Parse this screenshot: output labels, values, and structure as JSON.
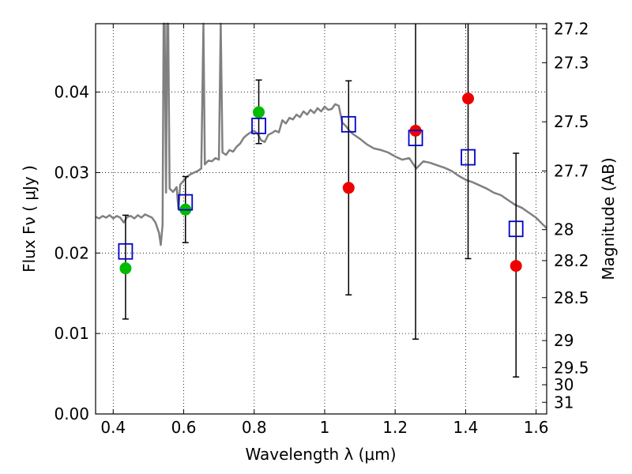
{
  "chart_data": {
    "type": "scatter",
    "xlabel": "Wavelength  λ (μm)",
    "ylabel": "Flux  Fν  ( μJy )",
    "y2label": "Magnitude (AB)",
    "xlim": [
      0.35,
      1.63
    ],
    "ylim": [
      0.0,
      0.0485
    ],
    "grid": true,
    "x_ticks": [
      {
        "value": 0.4,
        "label": "0.4"
      },
      {
        "value": 0.6,
        "label": "0.6"
      },
      {
        "value": 0.8,
        "label": "0.8"
      },
      {
        "value": 1.0,
        "label": "1"
      },
      {
        "value": 1.2,
        "label": "1.2"
      },
      {
        "value": 1.4,
        "label": "1.4"
      },
      {
        "value": 1.6,
        "label": "1.6"
      }
    ],
    "y_ticks": [
      {
        "value": 0.0,
        "label": "0.00"
      },
      {
        "value": 0.01,
        "label": "0.01"
      },
      {
        "value": 0.02,
        "label": "0.02"
      },
      {
        "value": 0.03,
        "label": "0.03"
      },
      {
        "value": 0.04,
        "label": "0.04"
      }
    ],
    "y2_ticks": [
      {
        "mag": 27.2,
        "label": "27.2"
      },
      {
        "mag": 27.3,
        "label": "27.3"
      },
      {
        "mag": 27.5,
        "label": "27.5"
      },
      {
        "mag": 27.7,
        "label": "27.7"
      },
      {
        "mag": 28.0,
        "label": "28"
      },
      {
        "mag": 28.2,
        "label": "28.2"
      },
      {
        "mag": 28.5,
        "label": "28.5"
      },
      {
        "mag": 29.0,
        "label": "29"
      },
      {
        "mag": 29.5,
        "label": "29.5"
      },
      {
        "mag": 30.0,
        "label": "30"
      },
      {
        "mag": 31.0,
        "label": "31"
      }
    ],
    "colors": {
      "model": "#808080",
      "detected": "#00bb00",
      "upper_limit": "#ee0000",
      "model_photometry": "#0000cc",
      "errorbar": "#000000"
    },
    "series": [
      {
        "role": "model_spectrum",
        "type": "line",
        "x": [
          0.35,
          0.36,
          0.37,
          0.38,
          0.39,
          0.4,
          0.41,
          0.42,
          0.43,
          0.44,
          0.45,
          0.46,
          0.47,
          0.48,
          0.49,
          0.5,
          0.51,
          0.52,
          0.53,
          0.535,
          0.54,
          0.543,
          0.546,
          0.55,
          0.553,
          0.556,
          0.56,
          0.57,
          0.58,
          0.585,
          0.59,
          0.6,
          0.61,
          0.62,
          0.63,
          0.64,
          0.65,
          0.656,
          0.66,
          0.67,
          0.68,
          0.69,
          0.7,
          0.705,
          0.71,
          0.72,
          0.73,
          0.74,
          0.75,
          0.76,
          0.77,
          0.78,
          0.79,
          0.8,
          0.81,
          0.82,
          0.83,
          0.84,
          0.85,
          0.86,
          0.87,
          0.88,
          0.89,
          0.9,
          0.91,
          0.92,
          0.93,
          0.94,
          0.95,
          0.96,
          0.97,
          0.98,
          0.99,
          1.0,
          1.01,
          1.02,
          1.03,
          1.04,
          1.05,
          1.06,
          1.07,
          1.08,
          1.09,
          1.1,
          1.12,
          1.14,
          1.16,
          1.18,
          1.2,
          1.22,
          1.24,
          1.26,
          1.28,
          1.3,
          1.32,
          1.34,
          1.36,
          1.38,
          1.4,
          1.42,
          1.44,
          1.46,
          1.48,
          1.5,
          1.52,
          1.54,
          1.56,
          1.58,
          1.6,
          1.62,
          1.63
        ],
        "y": [
          0.0245,
          0.0243,
          0.0246,
          0.0244,
          0.0247,
          0.0243,
          0.0246,
          0.0244,
          0.0238,
          0.0245,
          0.0246,
          0.0243,
          0.0247,
          0.0244,
          0.0248,
          0.0246,
          0.0244,
          0.0238,
          0.0225,
          0.021,
          0.0235,
          0.0485,
          0.0485,
          0.0275,
          0.0485,
          0.0485,
          0.028,
          0.0276,
          0.0282,
          0.0255,
          0.0285,
          0.029,
          0.0295,
          0.0298,
          0.03,
          0.0302,
          0.0305,
          0.0485,
          0.031,
          0.0315,
          0.0314,
          0.0318,
          0.0316,
          0.0485,
          0.0325,
          0.0322,
          0.0328,
          0.0326,
          0.0332,
          0.0336,
          0.0343,
          0.0347,
          0.035,
          0.0352,
          0.0348,
          0.034,
          0.0338,
          0.0347,
          0.0349,
          0.0352,
          0.035,
          0.0365,
          0.0361,
          0.0368,
          0.0366,
          0.0372,
          0.0369,
          0.0376,
          0.0372,
          0.0378,
          0.0374,
          0.038,
          0.0376,
          0.0382,
          0.0378,
          0.0379,
          0.0385,
          0.0383,
          0.0362,
          0.0358,
          0.0352,
          0.0348,
          0.0345,
          0.0342,
          0.0335,
          0.033,
          0.0328,
          0.0325,
          0.032,
          0.0316,
          0.0318,
          0.0305,
          0.0314,
          0.0312,
          0.0309,
          0.0306,
          0.0302,
          0.0296,
          0.0291,
          0.0288,
          0.0284,
          0.028,
          0.0275,
          0.0272,
          0.0266,
          0.026,
          0.0256,
          0.025,
          0.0244,
          0.0235,
          0.0231
        ]
      },
      {
        "role": "detections",
        "type": "scatter",
        "marker": "circle",
        "x": [
          0.435,
          0.605,
          0.813
        ],
        "y": [
          0.0181,
          0.0254,
          0.0375
        ]
      },
      {
        "role": "non_detections",
        "type": "scatter",
        "marker": "circle",
        "x": [
          1.068,
          1.258,
          1.407,
          1.543
        ],
        "y": [
          0.0281,
          0.0352,
          0.0392,
          0.0184
        ]
      },
      {
        "role": "model_photometry",
        "type": "scatter",
        "marker": "open-square",
        "x": [
          0.435,
          0.605,
          0.813,
          1.068,
          1.258,
          1.407,
          1.543
        ],
        "y": [
          0.0202,
          0.0263,
          0.0358,
          0.036,
          0.0343,
          0.0319,
          0.023
        ]
      },
      {
        "role": "errorbars",
        "type": "errorbar",
        "x": [
          0.435,
          0.605,
          0.813,
          1.068,
          1.258,
          1.407,
          1.543
        ],
        "y_low": [
          0.0118,
          0.0213,
          0.0336,
          0.0148,
          0.0093,
          0.0193,
          0.0046
        ],
        "y_high": [
          0.0247,
          0.0295,
          0.0415,
          0.0414,
          0.0485,
          0.0485,
          0.0324
        ],
        "capped_low": [
          true,
          true,
          true,
          true,
          true,
          true,
          true
        ],
        "capped_high": [
          true,
          true,
          true,
          true,
          false,
          false,
          true
        ]
      }
    ]
  }
}
